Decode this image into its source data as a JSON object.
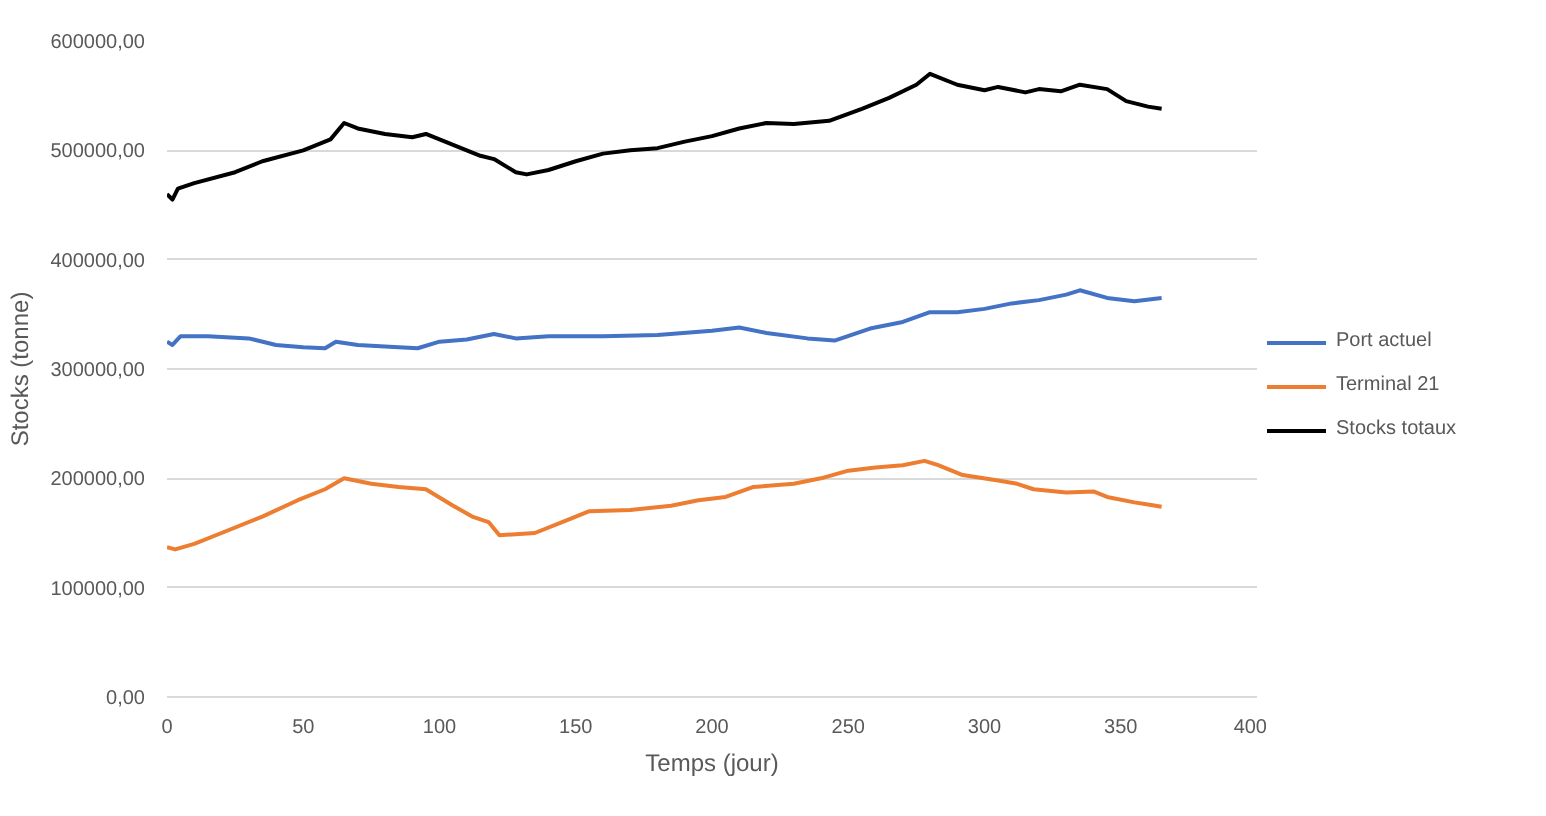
{
  "chart_data": {
    "type": "line",
    "xlabel": "Temps (jour)",
    "ylabel": "Stocks (tonne)",
    "xlim": [
      0,
      400
    ],
    "xticks": [
      0,
      50,
      100,
      150,
      200,
      250,
      300,
      350,
      400
    ],
    "ylim": [
      0,
      600000
    ],
    "yticks": [
      {
        "value": 0,
        "label": "0,00"
      },
      {
        "value": 100000,
        "label": "100000,00"
      },
      {
        "value": 200000,
        "label": "200000,00"
      },
      {
        "value": 300000,
        "label": "300000,00"
      },
      {
        "value": 400000,
        "label": "400000,00"
      },
      {
        "value": 500000,
        "label": "500000,00"
      },
      {
        "value": 600000,
        "label": "600000,00"
      }
    ],
    "grid": "y",
    "legend": "right",
    "marker": "none",
    "line_style": "solid",
    "series": [
      {
        "name": "Port actuel",
        "color": "#4472c4",
        "x": [
          0,
          2,
          5,
          15,
          30,
          40,
          50,
          58,
          62,
          70,
          85,
          92,
          100,
          110,
          120,
          128,
          140,
          160,
          180,
          200,
          210,
          220,
          235,
          245,
          258,
          270,
          280,
          290,
          300,
          310,
          320,
          330,
          335,
          345,
          355,
          365
        ],
        "values": [
          325000,
          322000,
          330000,
          330000,
          328000,
          322000,
          320000,
          319000,
          325000,
          322000,
          320000,
          319000,
          325000,
          327000,
          332000,
          328000,
          330000,
          330000,
          331000,
          335000,
          338000,
          333000,
          328000,
          326000,
          337000,
          343000,
          352000,
          352000,
          355000,
          360000,
          363000,
          368000,
          372000,
          365000,
          362000,
          365000
        ]
      },
      {
        "name": "Terminal 21",
        "color": "#ed7d31",
        "x": [
          0,
          3,
          10,
          20,
          35,
          48,
          58,
          65,
          75,
          85,
          95,
          105,
          112,
          118,
          122,
          135,
          145,
          155,
          170,
          185,
          195,
          205,
          215,
          230,
          240,
          250,
          260,
          270,
          278,
          283,
          292,
          305,
          312,
          318,
          330,
          340,
          345,
          355,
          360,
          365
        ],
        "values": [
          137000,
          135000,
          140000,
          150000,
          165000,
          180000,
          190000,
          200000,
          195000,
          192000,
          190000,
          175000,
          165000,
          160000,
          148000,
          150000,
          160000,
          170000,
          171000,
          175000,
          180000,
          183000,
          192000,
          195000,
          200000,
          207000,
          210000,
          212000,
          216000,
          212000,
          203000,
          198000,
          195000,
          190000,
          187000,
          188000,
          183000,
          178000,
          176000,
          174000
        ]
      },
      {
        "name": "Stocks totaux",
        "color": "#000000",
        "x": [
          0,
          2,
          4,
          10,
          25,
          35,
          50,
          60,
          65,
          70,
          80,
          90,
          95,
          100,
          115,
          120,
          128,
          132,
          140,
          150,
          160,
          170,
          180,
          190,
          200,
          210,
          220,
          230,
          243,
          255,
          265,
          275,
          280,
          290,
          300,
          305,
          315,
          320,
          328,
          335,
          345,
          352,
          360,
          365
        ],
        "values": [
          460000,
          455000,
          465000,
          470000,
          480000,
          490000,
          500000,
          510000,
          525000,
          520000,
          515000,
          512000,
          515000,
          510000,
          495000,
          492000,
          480000,
          478000,
          482000,
          490000,
          497000,
          500000,
          502000,
          508000,
          513000,
          520000,
          525000,
          524000,
          527000,
          538000,
          548000,
          560000,
          570000,
          560000,
          555000,
          558000,
          553000,
          556000,
          554000,
          560000,
          556000,
          545000,
          540000,
          538000
        ]
      }
    ]
  }
}
